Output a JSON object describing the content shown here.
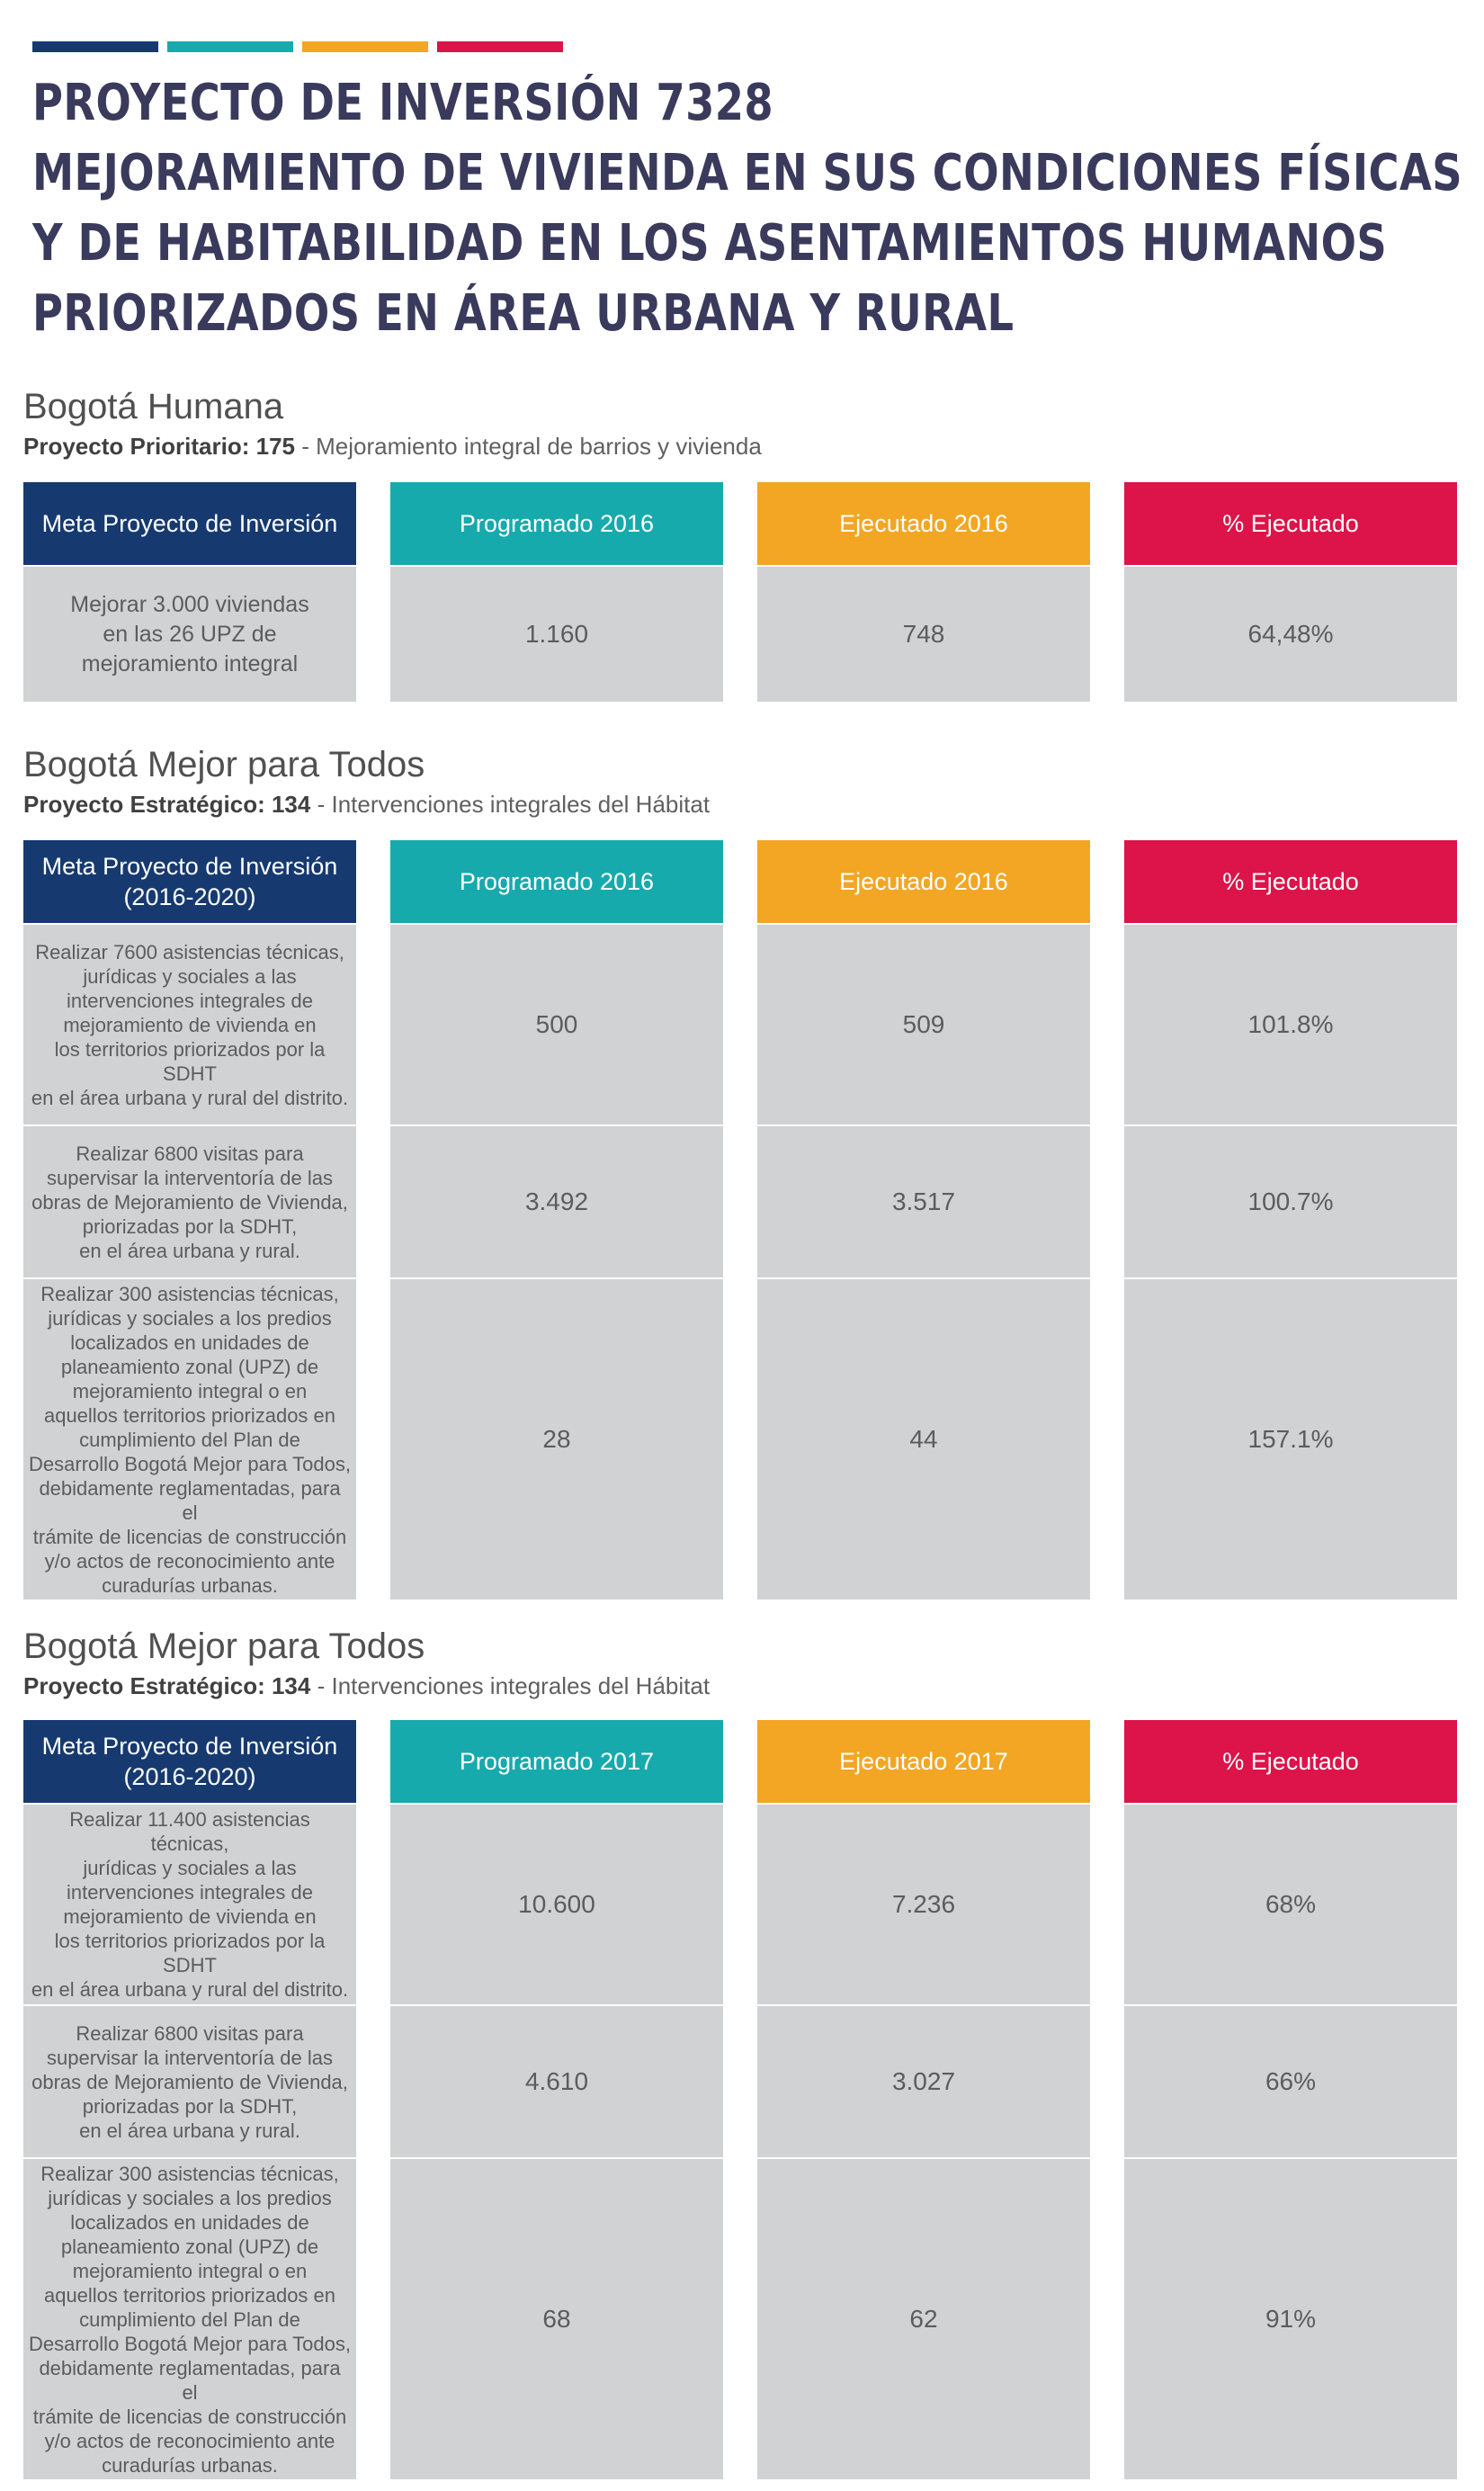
{
  "colors": {
    "navy": "#163a70",
    "teal": "#17aaad",
    "orange": "#f2a623",
    "crimson": "#dc1449",
    "cell_gray": "#d1d2d4"
  },
  "title_lines": [
    "PROYECTO DE INVERSIÓN 7328",
    "MEJORAMIENTO DE VIVIENDA EN SUS CONDICIONES FÍSICAS",
    "Y DE HABITABILIDAD EN LOS ASENTAMIENTOS HUMANOS",
    "PRIORIZADOS EN ÁREA URBANA Y RURAL"
  ],
  "sections": [
    {
      "title": "Bogotá Humana",
      "sub_label": "Proyecto Prioritario: 175",
      "sub_text": " - Mejoramiento integral de barrios y vivienda",
      "headers": {
        "meta": "Meta\nProyecto de Inversión",
        "programado": "Programado\n2016",
        "ejecutado": "Ejecutado\n2016",
        "porcentaje": "%\nEjecutado"
      },
      "rows": [
        {
          "meta": "Mejorar 3.000 viviendas\nen las 26 UPZ de\nmejoramiento integral",
          "programado": "1.160",
          "ejecutado": "748",
          "porcentaje": "64,48%"
        }
      ]
    },
    {
      "title": "Bogotá Mejor para Todos",
      "sub_label": "Proyecto Estratégico: 134",
      "sub_text": " - Intervenciones integrales del Hábitat",
      "headers": {
        "meta": "Meta Proyecto de Inversión\n(2016-2020)",
        "programado": "Programado\n2016",
        "ejecutado": "Ejecutado\n2016",
        "porcentaje": "%\nEjecutado"
      },
      "rows": [
        {
          "meta": "Realizar 7600 asistencias técnicas,\njurídicas y sociales a las\nintervenciones integrales de\nmejoramiento de vivienda en\nlos territorios priorizados por la SDHT\nen el área urbana y rural del distrito.",
          "programado": "500",
          "ejecutado": "509",
          "porcentaje": "101.8%"
        },
        {
          "meta": "Realizar 6800 visitas para\nsupervisar la interventoría de las\nobras de Mejoramiento de Vivienda,\npriorizadas por la SDHT,\nen el área urbana y rural.",
          "programado": "3.492",
          "ejecutado": "3.517",
          "porcentaje": "100.7%"
        },
        {
          "meta": "Realizar 300 asistencias técnicas,\njurídicas y sociales a los predios\nlocalizados en unidades de\nplaneamiento zonal (UPZ) de\nmejoramiento integral  o en\naquellos territorios priorizados en\ncumplimiento del Plan de\nDesarrollo Bogotá Mejor para Todos,\ndebidamente reglamentadas, para el\ntrámite de licencias de construcción\ny/o actos de reconocimiento ante\ncuradurías urbanas.",
          "programado": "28",
          "ejecutado": "44",
          "porcentaje": "157.1%"
        }
      ]
    },
    {
      "title": "Bogotá Mejor para Todos",
      "sub_label": "Proyecto Estratégico: 134",
      "sub_text": " - Intervenciones integrales del Hábitat",
      "headers": {
        "meta": "Meta Proyecto de Inversión\n(2016-2020)",
        "programado": "Programado\n2017",
        "ejecutado": "Ejecutado\n2017",
        "porcentaje": "%\nEjecutado"
      },
      "rows": [
        {
          "meta": "Realizar 11.400 asistencias técnicas,\njurídicas y sociales a las\nintervenciones integrales de\nmejoramiento de vivienda en\nlos territorios priorizados por la SDHT\nen el área urbana y rural del distrito.",
          "programado": "10.600",
          "ejecutado": "7.236",
          "porcentaje": "68%"
        },
        {
          "meta": "Realizar 6800 visitas para\nsupervisar la interventoría de las\nobras de Mejoramiento de Vivienda,\npriorizadas por la SDHT,\nen el área urbana y rural.",
          "programado": "4.610",
          "ejecutado": "3.027",
          "porcentaje": "66%"
        },
        {
          "meta": "Realizar 300 asistencias técnicas,\njurídicas y sociales a los predios\nlocalizados en unidades de\nplaneamiento zonal (UPZ) de\nmejoramiento integral  o en\naquellos territorios priorizados en\ncumplimiento del Plan de\nDesarrollo Bogotá Mejor para Todos,\ndebidamente reglamentadas, para el\ntrámite de licencias de construcción\ny/o actos de reconocimiento ante\ncuradurías urbanas.",
          "programado": "68",
          "ejecutado": "62",
          "porcentaje": "91%"
        }
      ]
    }
  ]
}
